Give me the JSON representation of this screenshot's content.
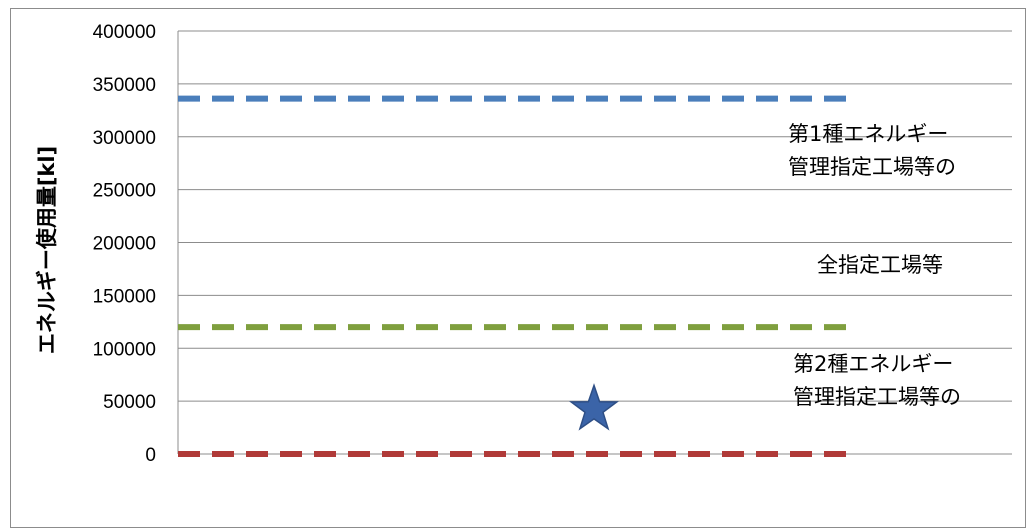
{
  "chart_data": {
    "type": "line",
    "title": "",
    "xlabel": "",
    "ylabel": "エネルギー使用量[kl]",
    "ylim": [
      0,
      400000
    ],
    "yticks": [
      "400000",
      "350000",
      "300000",
      "250000",
      "200000",
      "150000",
      "100000",
      "50000",
      "0"
    ],
    "grid": true,
    "series": [
      {
        "values": [
          336000,
          336000
        ],
        "color": "#4a7ebb",
        "style": "dashed"
      },
      {
        "values": [
          120000,
          120000
        ],
        "color": "#7f9f3e",
        "style": "dashed"
      },
      {
        "values": [
          0,
          0
        ],
        "color": "#b03a38",
        "style": "dashed"
      }
    ],
    "markers": [
      {
        "shape": "star",
        "y": 45000,
        "color": "#3b64a8"
      }
    ],
    "annotations": [
      {
        "lines": [
          "第1種エネルギー",
          "管理指定工場等の"
        ]
      },
      {
        "lines": [
          "全指定工場等"
        ]
      },
      {
        "lines": [
          "第2種エネルギー",
          "管理指定工場等の"
        ]
      }
    ]
  }
}
